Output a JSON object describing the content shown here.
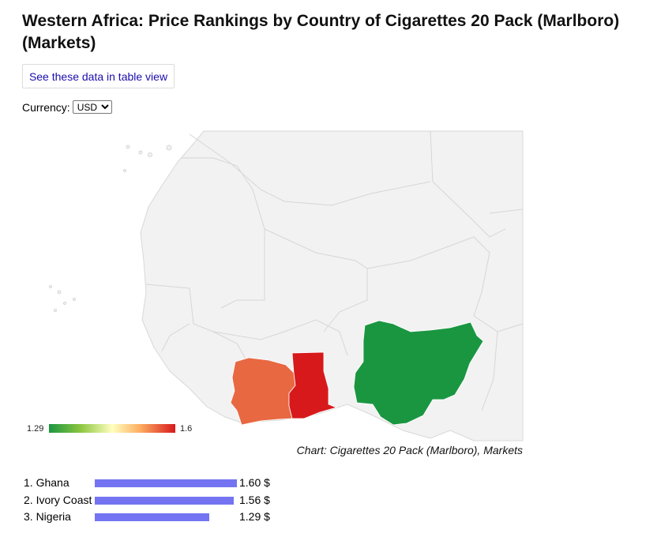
{
  "page": {
    "title": "Western Africa: Price Rankings by Country of Cigarettes 20 Pack (Marlboro) (Markets)",
    "table_view_link": "See these data in table view",
    "currency_label": "Currency:",
    "currency_selected": "USD"
  },
  "map": {
    "legend_min": "1.29",
    "legend_max": "1.6",
    "caption": "Chart: Cigarettes 20 Pack (Marlboro), Markets",
    "colors": {
      "ghana": "#d7191c",
      "ivory_coast": "#e86842",
      "nigeria": "#1a9641",
      "background_land": "#f2f2f2"
    }
  },
  "rankings": [
    {
      "label": "1. Ghana",
      "value": 1.6,
      "value_text": "1.60 $"
    },
    {
      "label": "2. Ivory Coast",
      "value": 1.56,
      "value_text": "1.56 $"
    },
    {
      "label": "3. Nigeria",
      "value": 1.29,
      "value_text": "1.29 $"
    }
  ]
}
